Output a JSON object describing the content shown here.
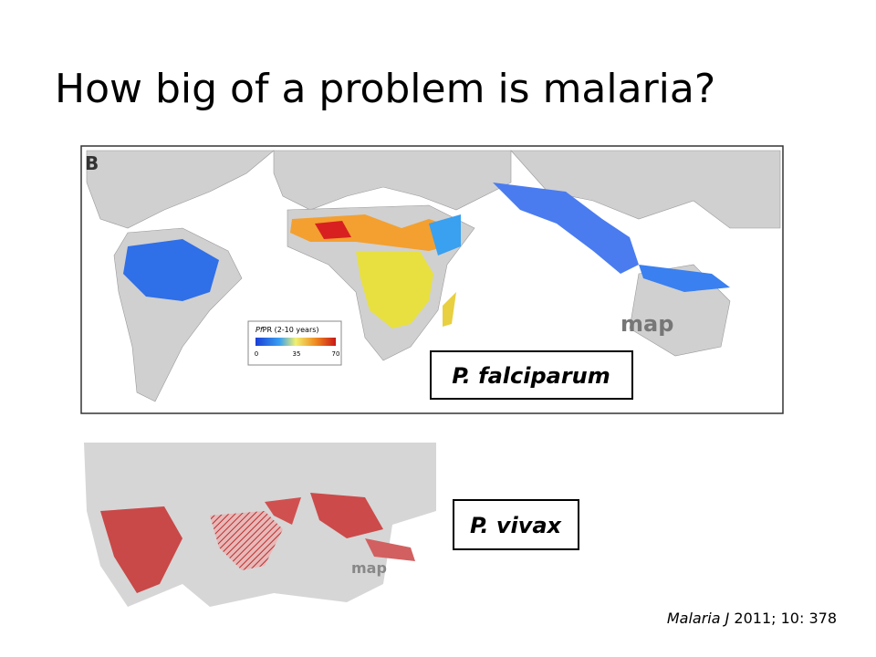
{
  "title": "How big of a problem is malaria?",
  "maps": [
    {
      "panel": "B",
      "legend": {
        "title_italic": "Pf",
        "title": "PR (2-10 years)",
        "ticks": [
          0,
          35,
          70
        ]
      },
      "logo": "map",
      "label": "P. falciparum"
    },
    {
      "logo": "map",
      "label": "P. vivax"
    }
  ],
  "citation": {
    "journal": "Malaria J",
    "details": "2011; 10: 378"
  }
}
